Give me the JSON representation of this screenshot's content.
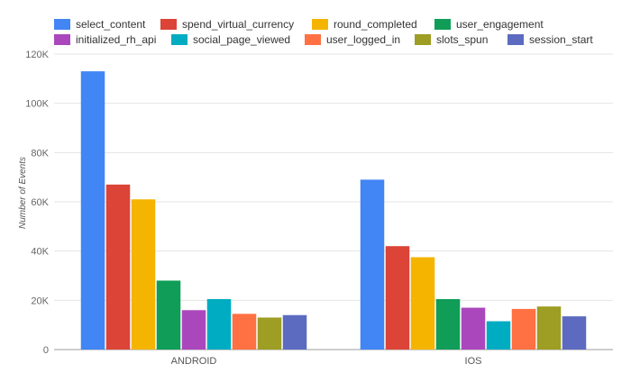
{
  "chart_data": {
    "type": "bar",
    "categories": [
      "ANDROID",
      "IOS"
    ],
    "ylabel": "Number of Events",
    "ylim": [
      0,
      120000
    ],
    "yticks": [
      0,
      20000,
      40000,
      60000,
      80000,
      100000,
      120000
    ],
    "ytick_labels": [
      "0",
      "20K",
      "40K",
      "60K",
      "80K",
      "100K",
      "120K"
    ],
    "grid": true,
    "legend_position": "top",
    "series": [
      {
        "name": "select_content",
        "color": "#4285F4",
        "values": [
          113000,
          69000
        ]
      },
      {
        "name": "spend_virtual_currency",
        "color": "#DB4437",
        "values": [
          67000,
          42000
        ]
      },
      {
        "name": "round_completed",
        "color": "#F4B400",
        "values": [
          61000,
          37500
        ]
      },
      {
        "name": "user_engagement",
        "color": "#0F9D58",
        "values": [
          28000,
          20500
        ]
      },
      {
        "name": "initialized_rh_api",
        "color": "#AB47BC",
        "values": [
          16000,
          17000
        ]
      },
      {
        "name": "social_page_viewed",
        "color": "#00ACC1",
        "values": [
          20500,
          11500
        ]
      },
      {
        "name": "user_logged_in",
        "color": "#FF7043",
        "values": [
          14500,
          16500
        ]
      },
      {
        "name": "slots_spun",
        "color": "#9E9D24",
        "values": [
          13000,
          17500
        ]
      },
      {
        "name": "session_start",
        "color": "#5C6BC0",
        "values": [
          14000,
          13500
        ]
      }
    ]
  }
}
